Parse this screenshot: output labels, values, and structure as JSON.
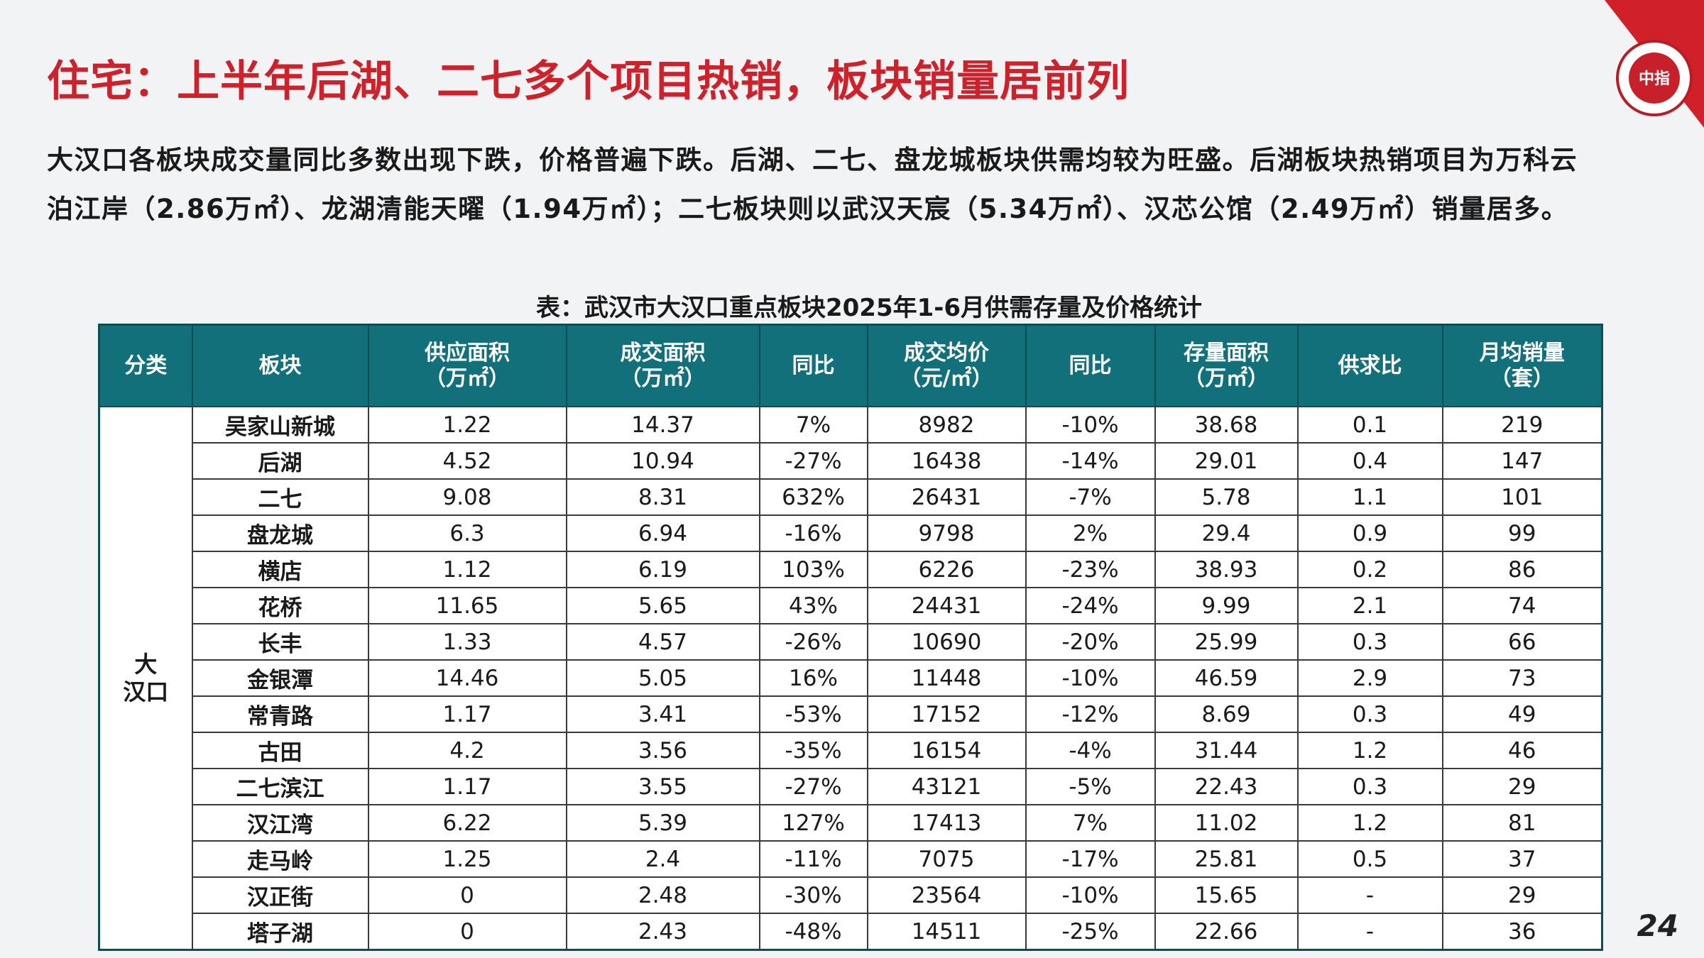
{
  "header": {
    "title": "住宅：上半年后湖、二七多个项目热销，板块销量居前列"
  },
  "paragraph": [
    "大汉口各板块成交量同比多数出现下跌，价格普遍下跌。后湖、二七、盘龙城板块供需均较为旺盛。后湖板块热销项目为万科云",
    "泊江岸（2.86万㎡）、龙湖清能天曜（1.94万㎡）；二七板块则以武汉天宸（5.34万㎡）、汉芯公馆（2.49万㎡）销量居多。"
  ],
  "table": {
    "caption": "表：武汉市大汉口重点板块2025年1-6月供需存量及价格统计",
    "headers": [
      [
        "分类"
      ],
      [
        "板块"
      ],
      [
        "供应面积",
        "（万㎡）"
      ],
      [
        "成交面积",
        "（万㎡）"
      ],
      [
        "同比"
      ],
      [
        "成交均价",
        "（元/㎡）"
      ],
      [
        "同比"
      ],
      [
        "存量面积",
        "（万㎡）"
      ],
      [
        "供求比"
      ],
      [
        "月均销量",
        "（套）"
      ]
    ],
    "category": [
      "大",
      "汉口"
    ],
    "rows": [
      [
        "吴家山新城",
        "1.22",
        "14.37",
        "7%",
        "8982",
        "-10%",
        "38.68",
        "0.1",
        "219"
      ],
      [
        "后湖",
        "4.52",
        "10.94",
        "-27%",
        "16438",
        "-14%",
        "29.01",
        "0.4",
        "147"
      ],
      [
        "二七",
        "9.08",
        "8.31",
        "632%",
        "26431",
        "-7%",
        "5.78",
        "1.1",
        "101"
      ],
      [
        "盘龙城",
        "6.3",
        "6.94",
        "-16%",
        "9798",
        "2%",
        "29.4",
        "0.9",
        "99"
      ],
      [
        "横店",
        "1.12",
        "6.19",
        "103%",
        "6226",
        "-23%",
        "38.93",
        "0.2",
        "86"
      ],
      [
        "花桥",
        "11.65",
        "5.65",
        "43%",
        "24431",
        "-24%",
        "9.99",
        "2.1",
        "74"
      ],
      [
        "长丰",
        "1.33",
        "4.57",
        "-26%",
        "10690",
        "-20%",
        "25.99",
        "0.3",
        "66"
      ],
      [
        "金银潭",
        "14.46",
        "5.05",
        "16%",
        "11448",
        "-10%",
        "46.59",
        "2.9",
        "73"
      ],
      [
        "常青路",
        "1.17",
        "3.41",
        "-53%",
        "17152",
        "-12%",
        "8.69",
        "0.3",
        "49"
      ],
      [
        "古田",
        "4.2",
        "3.56",
        "-35%",
        "16154",
        "-4%",
        "31.44",
        "1.2",
        "46"
      ],
      [
        "二七滨江",
        "1.17",
        "3.55",
        "-27%",
        "43121",
        "-5%",
        "22.43",
        "0.3",
        "29"
      ],
      [
        "汉江湾",
        "6.22",
        "5.39",
        "127%",
        "17413",
        "7%",
        "11.02",
        "1.2",
        "81"
      ],
      [
        "走马岭",
        "1.25",
        "2.4",
        "-11%",
        "7075",
        "-17%",
        "25.81",
        "0.5",
        "37"
      ],
      [
        "汉正街",
        "0",
        "2.48",
        "-30%",
        "23564",
        "-10%",
        "15.65",
        "-",
        "29"
      ],
      [
        "塔子湖",
        "0",
        "2.43",
        "-48%",
        "14511",
        "-25%",
        "22.66",
        "-",
        "36"
      ]
    ]
  },
  "logo": {
    "text": "中指"
  },
  "page_number": "24"
}
